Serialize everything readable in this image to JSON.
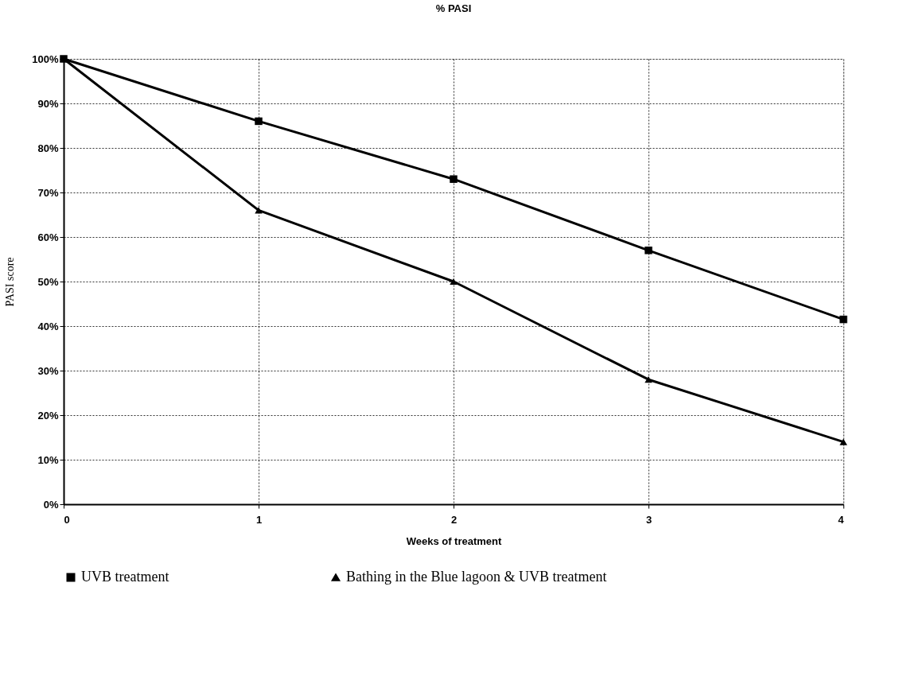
{
  "chart_data": {
    "type": "line",
    "title": "% PASI",
    "xlabel": "Weeks of treatment",
    "ylabel": "PASI score",
    "x": [
      0,
      1,
      2,
      3,
      4
    ],
    "series": [
      {
        "name": "UVB treatment",
        "color": "#000000",
        "marker": "square",
        "values": [
          100,
          86,
          73,
          57,
          41.5
        ]
      },
      {
        "name": "Bathing in the Blue lagoon & UVB treatment",
        "color": "#000000",
        "marker": "triangle",
        "values": [
          100,
          66,
          50,
          28,
          14
        ]
      }
    ],
    "xlim": [
      0,
      4
    ],
    "xticks": [
      0,
      1,
      2,
      3,
      4
    ],
    "ylim": [
      0,
      100
    ],
    "yticks": [
      {
        "value": 0,
        "label": "0%"
      },
      {
        "value": 10,
        "label": "10%"
      },
      {
        "value": 20,
        "label": "20%"
      },
      {
        "value": 30,
        "label": "30%"
      },
      {
        "value": 40,
        "label": "40%"
      },
      {
        "value": 50,
        "label": "50%"
      },
      {
        "value": 60,
        "label": "60%"
      },
      {
        "value": 70,
        "label": "70%"
      },
      {
        "value": 80,
        "label": "80%"
      },
      {
        "value": 90,
        "label": "90%"
      },
      {
        "value": 100,
        "label": "100%"
      }
    ],
    "grid": true,
    "legend": "bottom",
    "line_style": "solid"
  }
}
